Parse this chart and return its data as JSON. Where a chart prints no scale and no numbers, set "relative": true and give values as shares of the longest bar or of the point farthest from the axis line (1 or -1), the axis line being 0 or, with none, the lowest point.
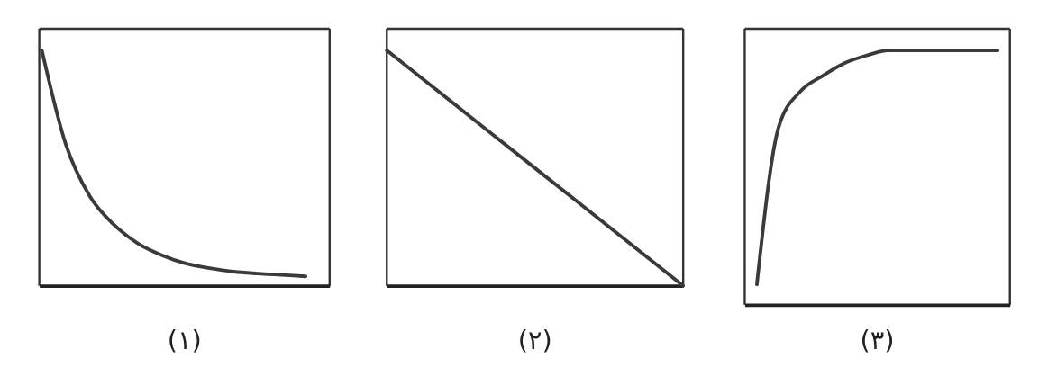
{
  "chart_data": [
    {
      "type": "line",
      "relative": true,
      "xlabel": "(١)",
      "categories": [
        null,
        null,
        null,
        null,
        null,
        null,
        null,
        null,
        null,
        null,
        null,
        null,
        null
      ],
      "series": [
        {
          "color": "#3a3a3a",
          "values": [
            1,
            0.6,
            0.38,
            0.26,
            0.18,
            0.13,
            0.095,
            0.075,
            0.06,
            0.052,
            0.046,
            0.04,
            null
          ]
        }
      ]
    },
    {
      "type": "line",
      "relative": true,
      "xlabel": "(٢)",
      "categories": [
        null,
        null,
        null,
        null,
        null
      ],
      "series": [
        {
          "color": "#3a3a3a",
          "values": [
            1,
            0.75,
            0.5,
            0.25,
            0
          ]
        }
      ]
    },
    {
      "type": "line",
      "relative": true,
      "xlabel": "(٣)",
      "categories": [
        null,
        null,
        null,
        null,
        null,
        null,
        null,
        null,
        null,
        null,
        null,
        null
      ],
      "series": [
        {
          "color": "#3a3a3a",
          "values": [
            0.08,
            0.7,
            0.84,
            0.9,
            0.95,
            0.98,
            1,
            1,
            1,
            1,
            1,
            1
          ]
        }
      ]
    }
  ]
}
